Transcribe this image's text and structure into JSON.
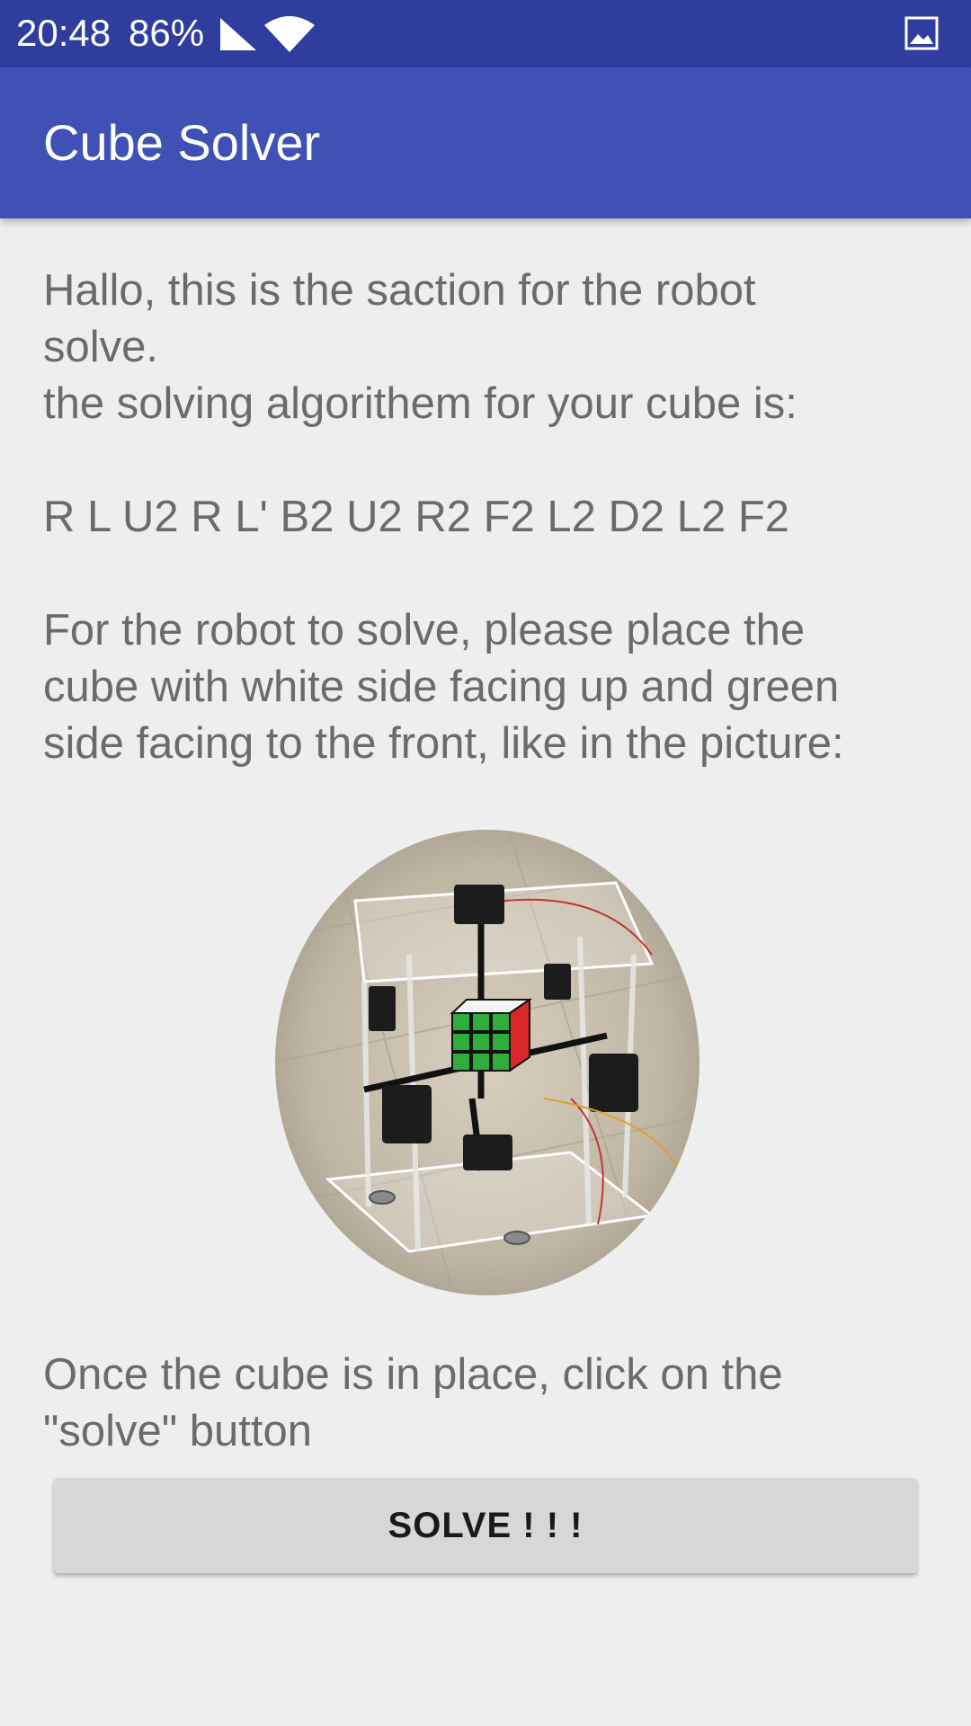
{
  "status_bar": {
    "time": "20:48",
    "battery": "86%",
    "icons": [
      "signal-icon",
      "wifi-icon",
      "image-icon"
    ]
  },
  "app_bar": {
    "title": "Cube Solver",
    "color": "#3f51b5"
  },
  "content": {
    "intro": "Hallo, this is the saction for the robot\nsolve.\nthe solving algorithem for your cube is:",
    "algorithm": "R L U2 R L' B2 U2 R2 F2 L2 D2 L2 F2",
    "placement": "For the robot to solve, please place the\ncube with white side facing up and green\nside facing to the front, like in the picture:",
    "picture": "robot-with-cube-picture",
    "once": "Once the cube is in place, click on the\n\"solve\" button"
  },
  "button": {
    "solve_label": "SOLVE ! ! !"
  }
}
